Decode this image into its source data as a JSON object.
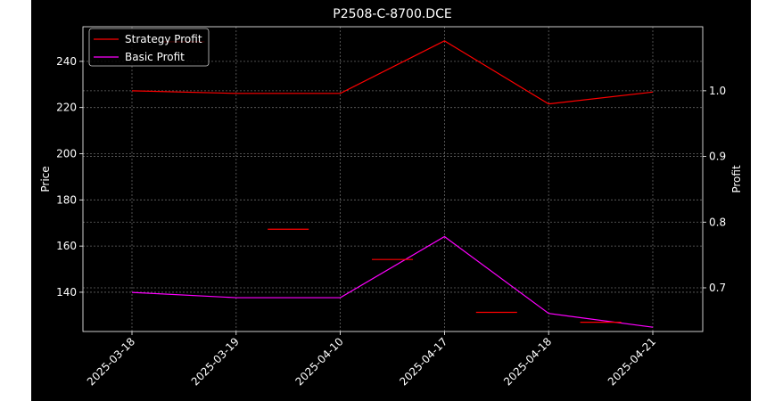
{
  "chart_data": {
    "type": "line",
    "title": "P2508-C-8700.DCE",
    "xlabel": "",
    "ylabel": "Price",
    "y2label": "Profit",
    "categories": [
      "2025-03-18",
      "2025-03-19",
      "2025-04-10",
      "2025-04-17",
      "2025-04-18",
      "2025-04-21"
    ],
    "ylim": [
      123,
      255
    ],
    "y_ticks": [
      140,
      160,
      180,
      200,
      220,
      240
    ],
    "y2lim": [
      0.6335,
      1.0975
    ],
    "y2_ticks": [
      0.7,
      0.8,
      0.9,
      1.0
    ],
    "price_marks": {
      "values": [
        248.5,
        167.3,
        154.2,
        131.3,
        127.0
      ],
      "x_positions": [
        1.5,
        2.5,
        3.5,
        4.5,
        5.5
      ],
      "color": "#ff0000"
    },
    "series": [
      {
        "name": "Strategy Profit",
        "axis": "right",
        "color": "#ff0000",
        "values": [
          1.0,
          0.996,
          0.996,
          1.076,
          0.98,
          0.998
        ]
      },
      {
        "name": "Basic Profit",
        "axis": "right",
        "color": "#ff00ff",
        "values": [
          0.693,
          0.685,
          0.685,
          0.778,
          0.661,
          0.64
        ]
      }
    ],
    "grid": true,
    "legend_position": "top-left"
  }
}
